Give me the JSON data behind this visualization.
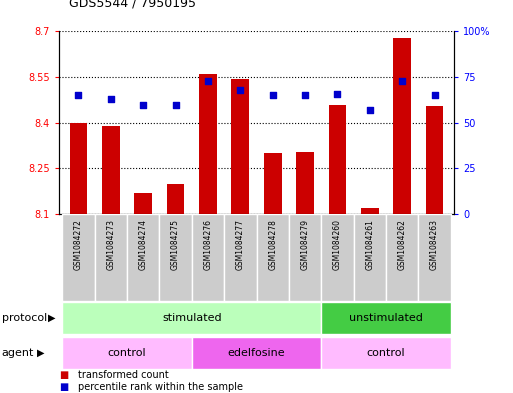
{
  "title": "GDS5544 / 7950195",
  "samples": [
    "GSM1084272",
    "GSM1084273",
    "GSM1084274",
    "GSM1084275",
    "GSM1084276",
    "GSM1084277",
    "GSM1084278",
    "GSM1084279",
    "GSM1084260",
    "GSM1084261",
    "GSM1084262",
    "GSM1084263"
  ],
  "bar_values": [
    8.4,
    8.39,
    8.17,
    8.2,
    8.56,
    8.545,
    8.3,
    8.305,
    8.46,
    8.12,
    8.68,
    8.455
  ],
  "bar_base": 8.1,
  "blue_values": [
    65,
    63,
    60,
    60,
    73,
    68,
    65,
    65,
    66,
    57,
    73,
    65
  ],
  "ylim_left": [
    8.1,
    8.7
  ],
  "ylim_right": [
    0,
    100
  ],
  "yticks_left": [
    8.1,
    8.25,
    8.4,
    8.55,
    8.7
  ],
  "yticks_right": [
    0,
    25,
    50,
    75,
    100
  ],
  "ytick_labels_left": [
    "8.1",
    "8.25",
    "8.4",
    "8.55",
    "8.7"
  ],
  "ytick_labels_right": [
    "0",
    "25",
    "50",
    "75",
    "100%"
  ],
  "bar_color": "#cc0000",
  "blue_color": "#0000cc",
  "protocol_groups": [
    {
      "label": "stimulated",
      "start": 0,
      "end": 7,
      "color": "#bbffbb"
    },
    {
      "label": "unstimulated",
      "start": 8,
      "end": 11,
      "color": "#44cc44"
    }
  ],
  "agent_groups": [
    {
      "label": "control",
      "start": 0,
      "end": 3,
      "color": "#ffbbff"
    },
    {
      "label": "edelfosine",
      "start": 4,
      "end": 7,
      "color": "#ee66ee"
    },
    {
      "label": "control",
      "start": 8,
      "end": 11,
      "color": "#ffbbff"
    }
  ],
  "legend_red_label": "transformed count",
  "legend_blue_label": "percentile rank within the sample",
  "protocol_label": "protocol",
  "agent_label": "agent",
  "sample_bg": "#cccccc",
  "title_fontsize": 9,
  "axis_fontsize": 7,
  "label_fontsize": 8,
  "tick_fontsize": 7
}
